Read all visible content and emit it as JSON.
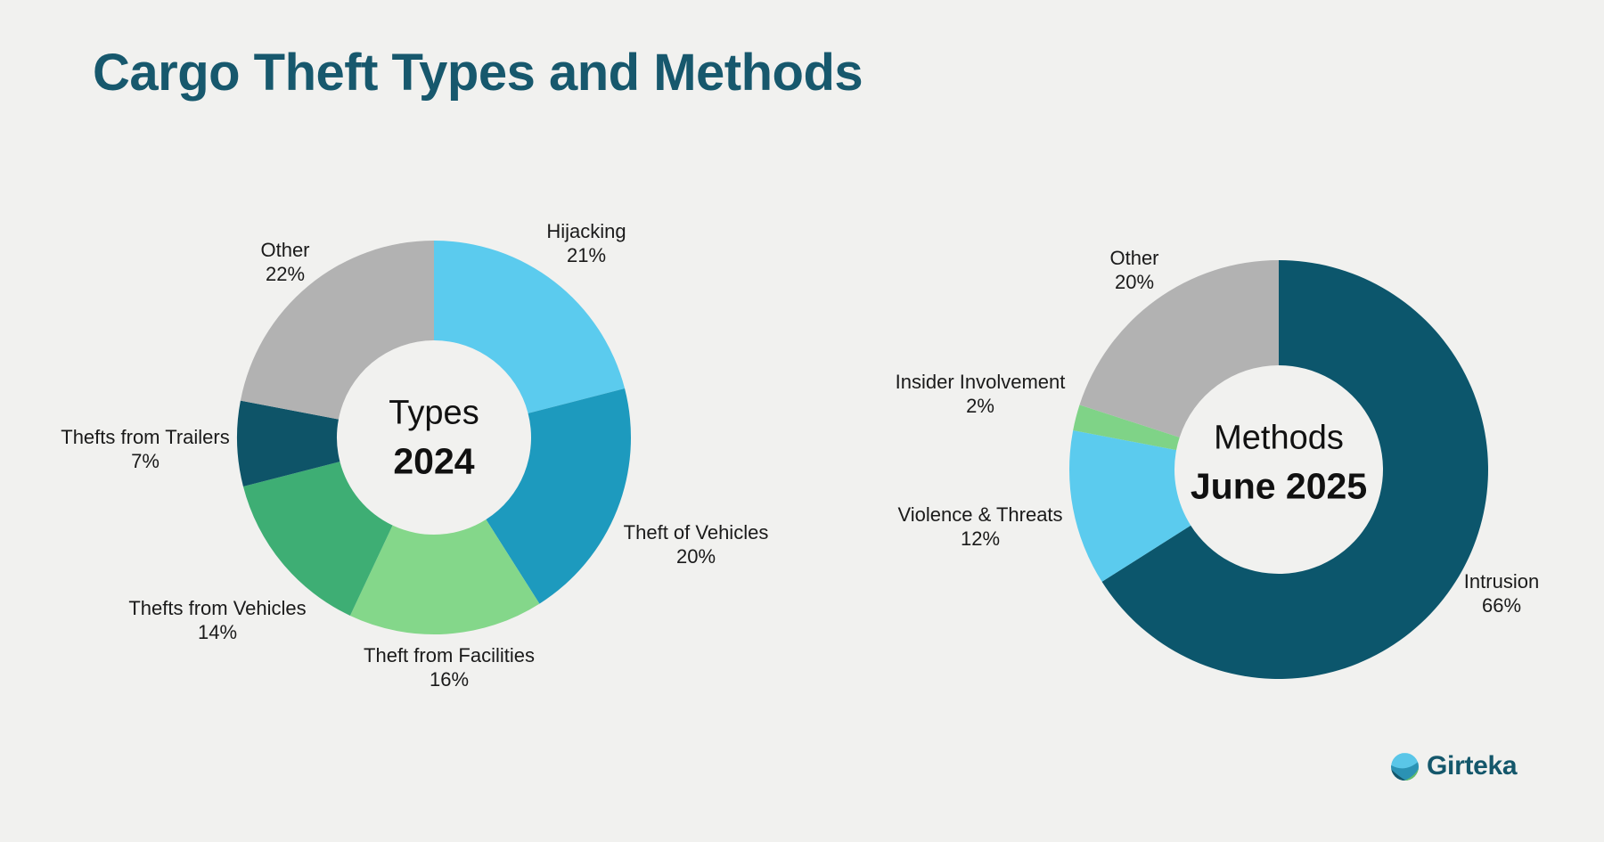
{
  "title": "Cargo Theft Types and Methods",
  "background_color": "#F1F1EF",
  "title_color": "#17586D",
  "logo": {
    "text": "Girteka"
  },
  "chart_data": [
    {
      "type": "pie",
      "subtype": "donut",
      "title": "Types",
      "subtitle": "2024",
      "unit": "%",
      "start_angle_deg": 0,
      "direction": "clockwise",
      "legend": "none",
      "labels_position": "outside",
      "categories": [
        "Hijacking",
        "Theft of Vehicles",
        "Theft from Facilities",
        "Thefts from Vehicles",
        "Thefts from Trailers",
        "Other"
      ],
      "values": [
        21,
        20,
        16,
        14,
        7,
        22
      ],
      "value_labels": [
        "21%",
        "20%",
        "16%",
        "14%",
        "7%",
        "22%"
      ],
      "colors": [
        "#5BCBEE",
        "#1D9ABE",
        "#84D78A",
        "#3EAE74",
        "#0E5468",
        "#B2B2B2"
      ]
    },
    {
      "type": "pie",
      "subtype": "donut",
      "title": "Methods",
      "subtitle": "June 2025",
      "unit": "%",
      "start_angle_deg": 0,
      "direction": "clockwise",
      "legend": "none",
      "labels_position": "outside",
      "categories": [
        "Intrusion",
        "Violence & Threats",
        "Insider Involvement",
        "Other"
      ],
      "values": [
        66,
        12,
        2,
        20
      ],
      "value_labels": [
        "66%",
        "12%",
        "2%",
        "20%"
      ],
      "colors": [
        "#0C566C",
        "#5BCBEE",
        "#7FD387",
        "#B2B2B2"
      ]
    }
  ]
}
